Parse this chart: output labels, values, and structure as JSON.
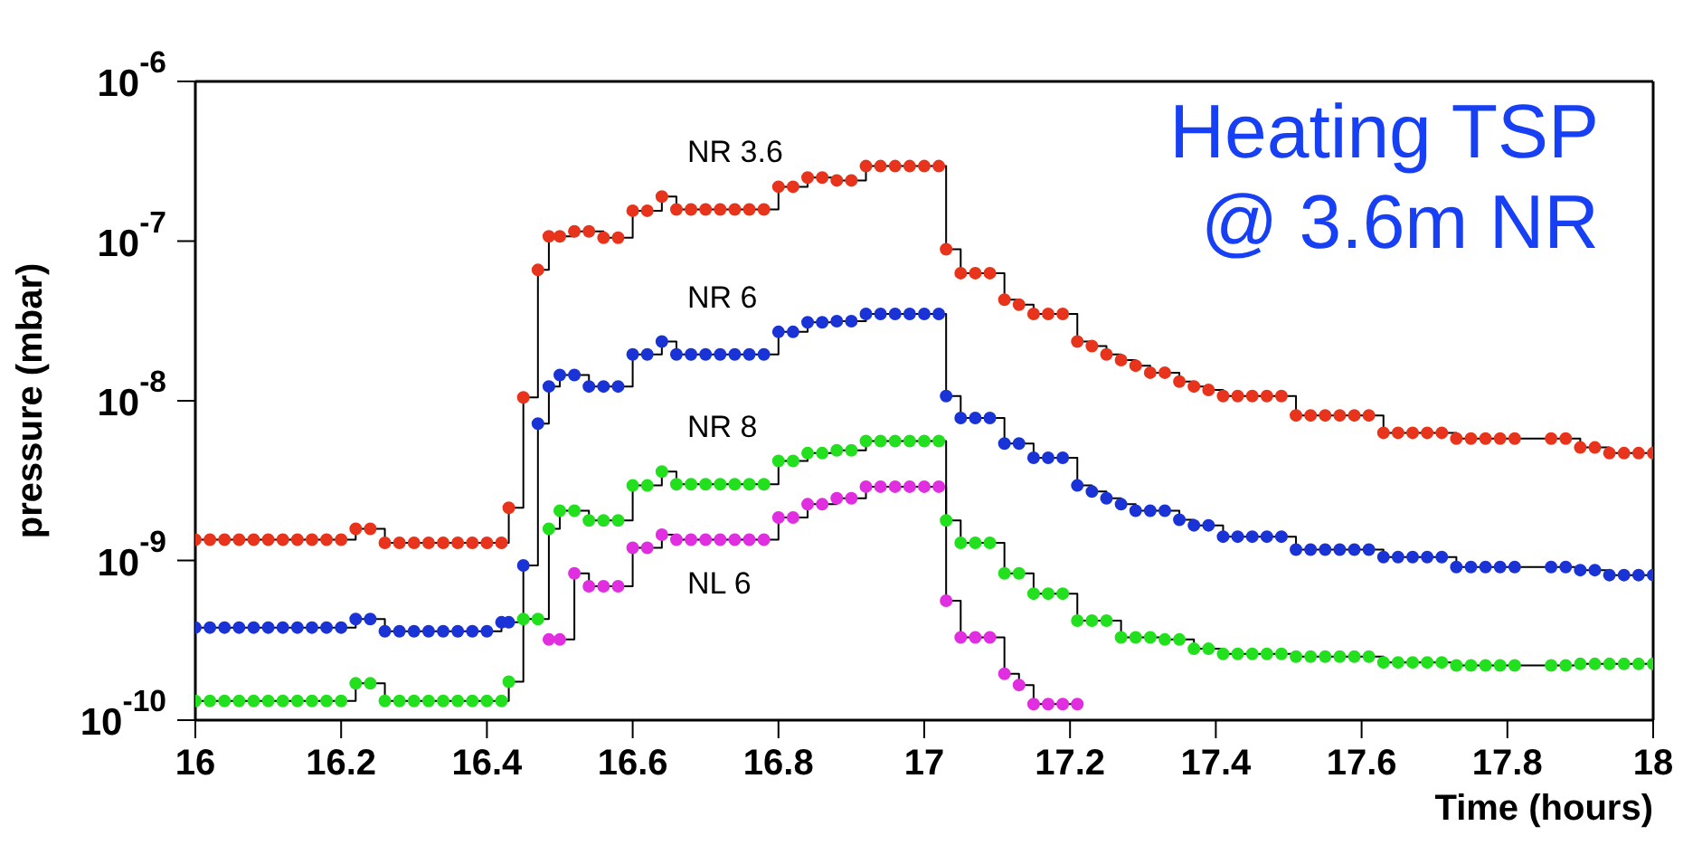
{
  "chart_data": {
    "type": "step",
    "xlabel": "Time (hours)",
    "ylabel": "pressure (mbar)",
    "annotations": [
      "Heating TSP",
      "@ 3.6m NR"
    ],
    "x": [
      16,
      16.02,
      16.04,
      16.06,
      16.08,
      16.1,
      16.12,
      16.14,
      16.16,
      16.18,
      16.2,
      16.22,
      16.24,
      16.26,
      16.28,
      16.3,
      16.32,
      16.34,
      16.36,
      16.38,
      16.4,
      16.42,
      16.43,
      16.45,
      16.47,
      16.485,
      16.5,
      16.52,
      16.54,
      16.56,
      16.58,
      16.6,
      16.62,
      16.64,
      16.66,
      16.68,
      16.7,
      16.72,
      16.74,
      16.76,
      16.78,
      16.8,
      16.82,
      16.84,
      16.86,
      16.88,
      16.9,
      16.92,
      16.94,
      16.96,
      16.98,
      17,
      17.02,
      17.03,
      17.05,
      17.07,
      17.09,
      17.11,
      17.13,
      17.15,
      17.17,
      17.19,
      17.21,
      17.23,
      17.25,
      17.27,
      17.29,
      17.31,
      17.33,
      17.35,
      17.37,
      17.39,
      17.41,
      17.43,
      17.45,
      17.47,
      17.49,
      17.51,
      17.53,
      17.55,
      17.57,
      17.59,
      17.61,
      17.63,
      17.65,
      17.67,
      17.69,
      17.71,
      17.73,
      17.75,
      17.77,
      17.79,
      17.81,
      17.86,
      17.88,
      17.9,
      17.92,
      17.94,
      17.96,
      17.98,
      18
    ],
    "series": [
      {
        "name": "NR 3.6",
        "color": "#e8341c",
        "values": [
          1.35e-09,
          1.35e-09,
          1.35e-09,
          1.35e-09,
          1.35e-09,
          1.35e-09,
          1.35e-09,
          1.35e-09,
          1.35e-09,
          1.35e-09,
          1.35e-09,
          1.58e-09,
          1.58e-09,
          1.29e-09,
          1.29e-09,
          1.29e-09,
          1.29e-09,
          1.29e-09,
          1.29e-09,
          1.29e-09,
          1.29e-09,
          1.29e-09,
          2.14e-09,
          1.05e-08,
          6.6e-08,
          1.07e-07,
          1.07e-07,
          1.15e-07,
          1.15e-07,
          1.05e-07,
          1.05e-07,
          1.55e-07,
          1.55e-07,
          1.9e-07,
          1.58e-07,
          1.58e-07,
          1.58e-07,
          1.58e-07,
          1.58e-07,
          1.58e-07,
          1.58e-07,
          2.19e-07,
          2.19e-07,
          2.5e-07,
          2.5e-07,
          2.4e-07,
          2.4e-07,
          2.95e-07,
          2.95e-07,
          2.95e-07,
          2.95e-07,
          2.95e-07,
          2.95e-07,
          8.9e-08,
          6.3e-08,
          6.3e-08,
          6.3e-08,
          4.3e-08,
          4e-08,
          3.5e-08,
          3.5e-08,
          3.5e-08,
          2.35e-08,
          2.2e-08,
          1.95e-08,
          1.8e-08,
          1.66e-08,
          1.5e-08,
          1.5e-08,
          1.32e-08,
          1.23e-08,
          1.17e-08,
          1.07e-08,
          1.07e-08,
          1.07e-08,
          1.07e-08,
          1.07e-08,
          8.1e-09,
          8.1e-09,
          8.1e-09,
          8.1e-09,
          8.1e-09,
          8.1e-09,
          6.3e-09,
          6.3e-09,
          6.3e-09,
          6.3e-09,
          6.3e-09,
          5.8e-09,
          5.8e-09,
          5.8e-09,
          5.8e-09,
          5.8e-09,
          5.8e-09,
          5.8e-09,
          5.1e-09,
          5.1e-09,
          4.7e-09,
          4.7e-09,
          4.7e-09,
          4.7e-09
        ]
      },
      {
        "name": "NR 6",
        "color": "#1a33d6",
        "values": [
          3.8e-10,
          3.8e-10,
          3.8e-10,
          3.8e-10,
          3.8e-10,
          3.8e-10,
          3.8e-10,
          3.8e-10,
          3.8e-10,
          3.8e-10,
          3.8e-10,
          4.3e-10,
          4.3e-10,
          3.6e-10,
          3.6e-10,
          3.6e-10,
          3.6e-10,
          3.6e-10,
          3.6e-10,
          3.6e-10,
          3.6e-10,
          4.1e-10,
          4.1e-10,
          9.3e-10,
          7.2e-09,
          1.23e-08,
          1.45e-08,
          1.45e-08,
          1.23e-08,
          1.23e-08,
          1.23e-08,
          1.95e-08,
          1.95e-08,
          2.35e-08,
          1.95e-08,
          1.95e-08,
          1.95e-08,
          1.95e-08,
          1.95e-08,
          1.95e-08,
          1.95e-08,
          2.7e-08,
          2.7e-08,
          3.1e-08,
          3.1e-08,
          3.15e-08,
          3.15e-08,
          3.5e-08,
          3.5e-08,
          3.5e-08,
          3.5e-08,
          3.5e-08,
          3.5e-08,
          1.07e-08,
          7.8e-09,
          7.8e-09,
          7.8e-09,
          5.4e-09,
          5.4e-09,
          4.4e-09,
          4.4e-09,
          4.4e-09,
          2.95e-09,
          2.7e-09,
          2.45e-09,
          2.25e-09,
          2.05e-09,
          2.05e-09,
          2.05e-09,
          1.8e-09,
          1.66e-09,
          1.66e-09,
          1.41e-09,
          1.41e-09,
          1.41e-09,
          1.41e-09,
          1.41e-09,
          1.17e-09,
          1.17e-09,
          1.17e-09,
          1.17e-09,
          1.17e-09,
          1.17e-09,
          1.05e-09,
          1.05e-09,
          1.05e-09,
          1.05e-09,
          1.05e-09,
          9.1e-10,
          9.1e-10,
          9.1e-10,
          9.1e-10,
          9.1e-10,
          9.1e-10,
          9.1e-10,
          8.7e-10,
          8.7e-10,
          8.1e-10,
          8.1e-10,
          8.1e-10,
          8.1e-10
        ]
      },
      {
        "name": "NR 8",
        "color": "#22e01e",
        "values": [
          1.32e-10,
          1.32e-10,
          1.32e-10,
          1.32e-10,
          1.32e-10,
          1.32e-10,
          1.32e-10,
          1.32e-10,
          1.32e-10,
          1.32e-10,
          1.32e-10,
          1.7e-10,
          1.7e-10,
          1.32e-10,
          1.32e-10,
          1.32e-10,
          1.32e-10,
          1.32e-10,
          1.32e-10,
          1.32e-10,
          1.32e-10,
          1.32e-10,
          1.74e-10,
          4.3e-10,
          4.3e-10,
          1.58e-09,
          2.05e-09,
          2.05e-09,
          1.78e-09,
          1.78e-09,
          1.78e-09,
          2.95e-09,
          2.95e-09,
          3.6e-09,
          3e-09,
          3e-09,
          3e-09,
          3e-09,
          3e-09,
          3e-09,
          3e-09,
          4.2e-09,
          4.2e-09,
          4.7e-09,
          4.7e-09,
          4.9e-09,
          4.9e-09,
          5.6e-09,
          5.6e-09,
          5.6e-09,
          5.6e-09,
          5.6e-09,
          5.6e-09,
          1.78e-09,
          1.29e-09,
          1.29e-09,
          1.29e-09,
          8.3e-10,
          8.3e-10,
          6.2e-10,
          6.2e-10,
          6.2e-10,
          4.2e-10,
          4.2e-10,
          4.2e-10,
          3.3e-10,
          3.3e-10,
          3.3e-10,
          3.2e-10,
          3.2e-10,
          2.8e-10,
          2.8e-10,
          2.6e-10,
          2.6e-10,
          2.6e-10,
          2.6e-10,
          2.6e-10,
          2.5e-10,
          2.5e-10,
          2.5e-10,
          2.5e-10,
          2.5e-10,
          2.5e-10,
          2.3e-10,
          2.3e-10,
          2.3e-10,
          2.3e-10,
          2.3e-10,
          2.2e-10,
          2.2e-10,
          2.2e-10,
          2.2e-10,
          2.2e-10,
          2.2e-10,
          2.2e-10,
          2.25e-10,
          2.25e-10,
          2.25e-10,
          2.25e-10,
          2.25e-10,
          2.25e-10
        ]
      },
      {
        "name": "NL 6",
        "color": "#e02ee0",
        "x": [
          16.485,
          16.5,
          16.52,
          16.54,
          16.56,
          16.58,
          16.6,
          16.62,
          16.64,
          16.66,
          16.68,
          16.7,
          16.72,
          16.74,
          16.76,
          16.78,
          16.8,
          16.82,
          16.84,
          16.86,
          16.88,
          16.9,
          16.92,
          16.94,
          16.96,
          16.98,
          17,
          17.02,
          17.03,
          17.05,
          17.07,
          17.09,
          17.11,
          17.13,
          17.15,
          17.17,
          17.19,
          17.21
        ],
        "values": [
          3.2e-10,
          3.2e-10,
          8.3e-10,
          6.9e-10,
          6.9e-10,
          6.9e-10,
          1.2e-09,
          1.2e-09,
          1.45e-09,
          1.35e-09,
          1.35e-09,
          1.35e-09,
          1.35e-09,
          1.35e-09,
          1.35e-09,
          1.35e-09,
          1.86e-09,
          1.86e-09,
          2.25e-09,
          2.25e-09,
          2.45e-09,
          2.45e-09,
          2.9e-09,
          2.9e-09,
          2.9e-09,
          2.9e-09,
          2.9e-09,
          2.9e-09,
          5.6e-10,
          3.3e-10,
          3.3e-10,
          3.3e-10,
          1.95e-10,
          1.66e-10,
          1.26e-10,
          1.26e-10,
          1.26e-10,
          1.26e-10
        ]
      }
    ],
    "log": true,
    "marker": "circle",
    "line_style": "solid",
    "grid": false,
    "legend": false,
    "xlim": [
      16,
      18
    ],
    "xticks": [
      16,
      16.2,
      16.4,
      16.6,
      16.8,
      17,
      17.2,
      17.4,
      17.6,
      17.8,
      18
    ],
    "ylim": [
      1e-10,
      1e-06
    ],
    "yticks": [
      {
        "value": 1e-10,
        "label": "10$^{-10}$"
      },
      {
        "value": 1e-09,
        "label": "10$^{-9}$"
      },
      {
        "value": 1e-08,
        "label": "10$^{-8}$"
      },
      {
        "value": 1e-07,
        "label": "10$^{-7}$"
      },
      {
        "value": 1e-06,
        "label": "10$^{-6}$"
      }
    ]
  }
}
